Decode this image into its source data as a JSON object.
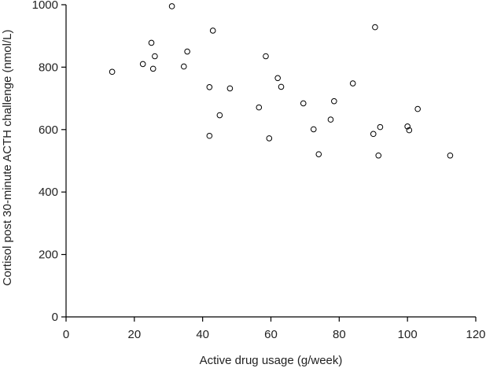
{
  "chart_data": {
    "type": "scatter",
    "xlabel": "Active drug usage (g/week)",
    "ylabel": "Cortisol post 30-minute ACTH challenge (nmol/L)",
    "xlim": [
      0,
      120
    ],
    "ylim": [
      0,
      1000
    ],
    "xticks": [
      0,
      20,
      40,
      60,
      80,
      100,
      120
    ],
    "yticks": [
      0,
      200,
      400,
      600,
      800,
      1000
    ],
    "grid": false,
    "marker": "open-circle",
    "marker_color": "#000000",
    "points": [
      {
        "x": 13.5,
        "y": 785
      },
      {
        "x": 22.5,
        "y": 810
      },
      {
        "x": 25.0,
        "y": 878
      },
      {
        "x": 26.0,
        "y": 835
      },
      {
        "x": 25.5,
        "y": 795
      },
      {
        "x": 31.0,
        "y": 995
      },
      {
        "x": 34.5,
        "y": 802
      },
      {
        "x": 35.5,
        "y": 850
      },
      {
        "x": 43.0,
        "y": 917
      },
      {
        "x": 42.0,
        "y": 736
      },
      {
        "x": 42.0,
        "y": 580
      },
      {
        "x": 45.0,
        "y": 646
      },
      {
        "x": 48.0,
        "y": 732
      },
      {
        "x": 56.5,
        "y": 671
      },
      {
        "x": 58.5,
        "y": 835
      },
      {
        "x": 59.5,
        "y": 572
      },
      {
        "x": 62.0,
        "y": 765
      },
      {
        "x": 63.0,
        "y": 737
      },
      {
        "x": 69.5,
        "y": 684
      },
      {
        "x": 72.5,
        "y": 601
      },
      {
        "x": 74.0,
        "y": 521
      },
      {
        "x": 77.5,
        "y": 632
      },
      {
        "x": 78.5,
        "y": 691
      },
      {
        "x": 84.0,
        "y": 748
      },
      {
        "x": 90.0,
        "y": 586
      },
      {
        "x": 90.5,
        "y": 928
      },
      {
        "x": 91.5,
        "y": 517
      },
      {
        "x": 92.0,
        "y": 608
      },
      {
        "x": 100.0,
        "y": 610
      },
      {
        "x": 100.5,
        "y": 598
      },
      {
        "x": 103.0,
        "y": 666
      },
      {
        "x": 112.5,
        "y": 517
      }
    ]
  }
}
